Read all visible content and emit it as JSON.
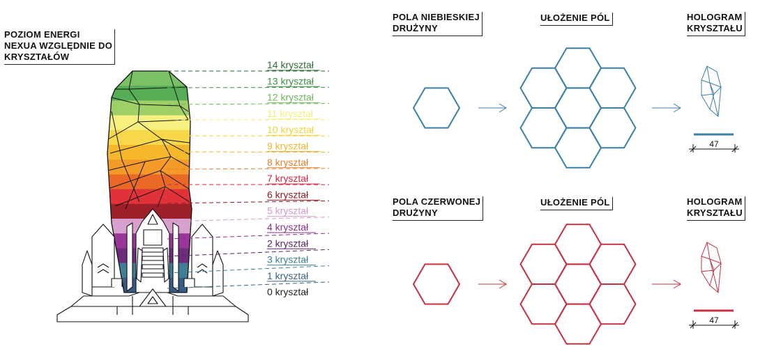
{
  "energy_title": [
    "POZIOM ENERGI",
    "NEXUA WZGLĘDNIE DO",
    "KRYSZTAŁÓW"
  ],
  "levels": [
    {
      "label": "14 kryształ",
      "color": "#2e6b3a"
    },
    {
      "label": "13 kryształ",
      "color": "#3f8f45"
    },
    {
      "label": "12 kryształ",
      "color": "#6cb858"
    },
    {
      "label": "11 kryształ",
      "color": "#f4ee7c"
    },
    {
      "label": "10 kryształ",
      "color": "#f2d23a"
    },
    {
      "label": "9 kryształ",
      "color": "#f2b52e"
    },
    {
      "label": "8 kryształ",
      "color": "#e7802a"
    },
    {
      "label": "7 kryształ",
      "color": "#d6263a"
    },
    {
      "label": "6 kryształ",
      "color": "#8e1b24"
    },
    {
      "label": "5 kryształ",
      "color": "#d39ac8"
    },
    {
      "label": "4 kryształ",
      "color": "#8d2d8d"
    },
    {
      "label": "2 kryształ",
      "color": "#5a2468"
    },
    {
      "label": "3 kryształ",
      "color": "#3d7f93"
    },
    {
      "label": "1 kryształ",
      "color": "#3a6288"
    },
    {
      "label": "0 kryształ",
      "color": "#222222"
    }
  ],
  "crystal_bands": [
    "#79c067",
    "#56ad55",
    "#9fd068",
    "#f7f07f",
    "#f6d84a",
    "#f4b82a",
    "#f39a28",
    "#ea6a25",
    "#e1323a",
    "#9c1f2a",
    "#d8a0cc",
    "#9a3699",
    "#6e2c7c",
    "#3e7f96",
    "#385c86"
  ],
  "teams": [
    {
      "field_label": [
        "POLA NIEBIESKIEJ",
        "DRUŻYNY"
      ],
      "layout_label": [
        "UŁOŻENIE PÓL"
      ],
      "hologram_label": [
        "HOLOGRAM",
        "KRYSZTAŁU"
      ],
      "color": "#3a7fa6",
      "dimension": "47"
    },
    {
      "field_label": [
        "POLA CZERWONEJ",
        "DRUŻYNY"
      ],
      "layout_label": [
        "UŁOŻENIE PÓL"
      ],
      "hologram_label": [
        "HOLOGRAM",
        "KRYSZTAŁU"
      ],
      "color": "#c8303f",
      "dimension": "47"
    }
  ]
}
